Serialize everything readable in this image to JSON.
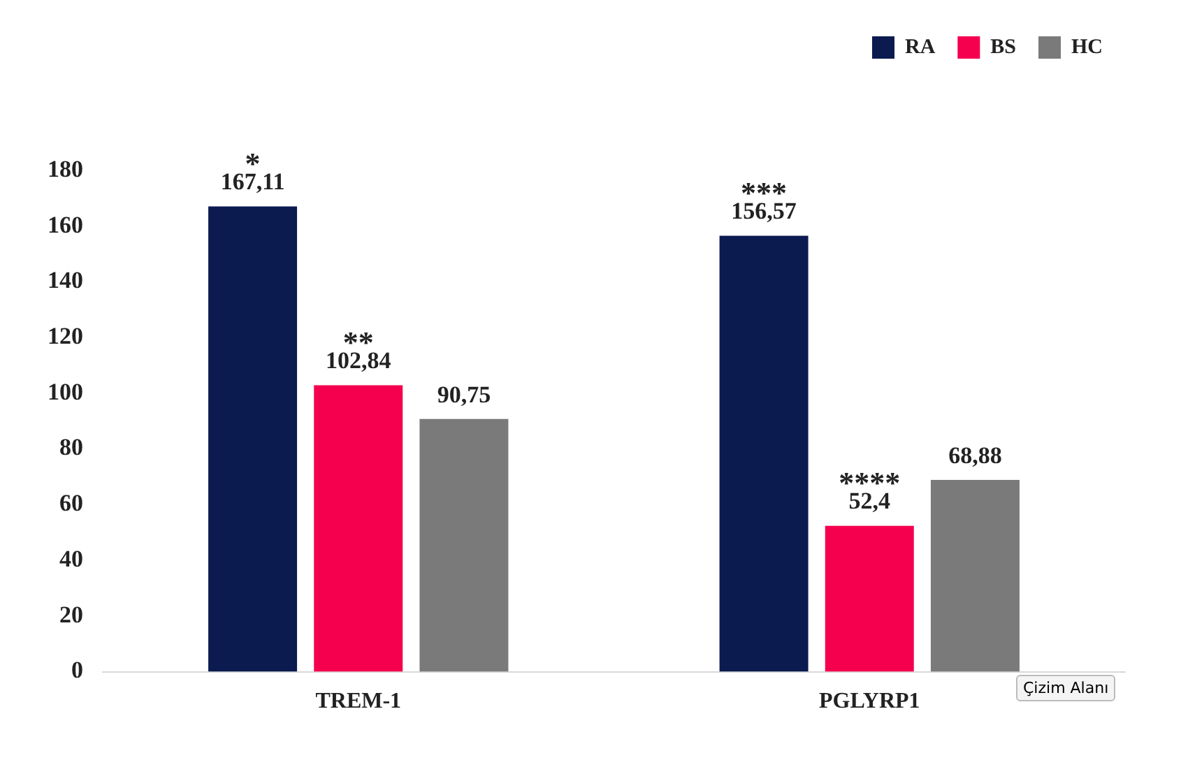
{
  "chart_data": {
    "type": "bar",
    "categories": [
      "TREM-1",
      "PGLYRP1"
    ],
    "series": [
      {
        "name": "RA",
        "color": "#0b1a4f",
        "values": [
          167.11,
          156.57
        ],
        "value_labels": [
          "167,11",
          "156,57"
        ]
      },
      {
        "name": "BS",
        "color": "#f5004f",
        "values": [
          102.84,
          52.4
        ],
        "value_labels": [
          "102,84",
          "52,4"
        ]
      },
      {
        "name": "HC",
        "color": "#7a7a7a",
        "values": [
          90.75,
          68.88
        ],
        "value_labels": [
          "90,75",
          "68,88"
        ]
      }
    ],
    "ylim": [
      0,
      180
    ],
    "yticks": [
      0,
      20,
      40,
      60,
      80,
      100,
      120,
      140,
      160,
      180
    ],
    "grid": false,
    "legend": "top right",
    "annotations": [
      "*",
      "**",
      "***",
      "****",
      "Çizim Alanı"
    ]
  }
}
